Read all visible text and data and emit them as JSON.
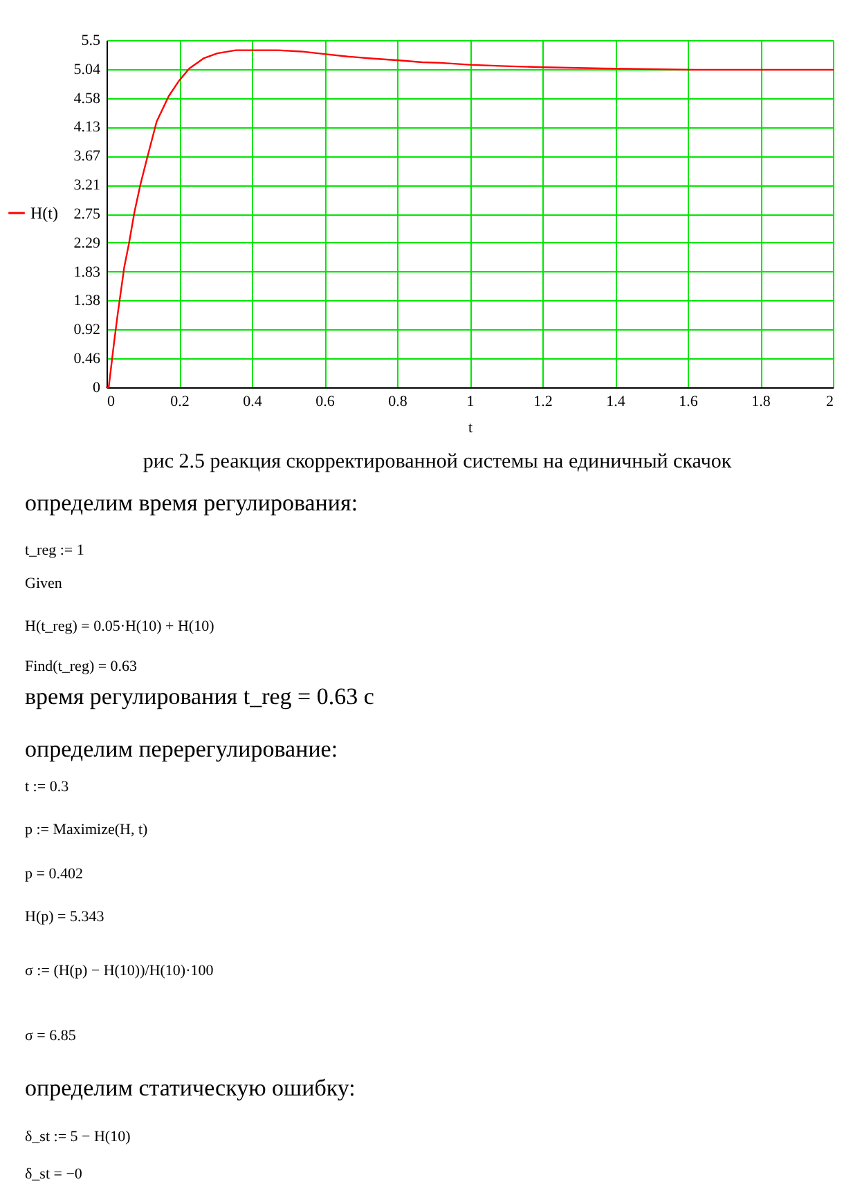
{
  "chart_data": {
    "type": "line",
    "title": "рис 2.5 реакция скорректированной системы на единичный скачок",
    "xlabel": "t",
    "x": [
      0,
      0.006,
      0.0205,
      0.031,
      0.0487,
      0.0615,
      0.077,
      0.0936,
      0.113,
      0.138,
      0.171,
      0.2,
      0.228,
      0.267,
      0.305,
      0.356,
      0.4,
      0.472,
      0.536,
      0.6,
      0.664,
      0.728,
      0.805,
      0.869,
      0.92,
      1.0,
      1.085,
      1.206,
      1.365,
      1.621,
      2.0
    ],
    "series": [
      {
        "name": "H(t)",
        "color": "#ff0000",
        "values": [
          0,
          0,
          0.7,
          1.17,
          1.9,
          2.27,
          2.78,
          3.22,
          3.66,
          4.21,
          4.61,
          4.86,
          5.05,
          5.21,
          5.29,
          5.34,
          5.34,
          5.34,
          5.32,
          5.28,
          5.24,
          5.21,
          5.18,
          5.15,
          5.14,
          5.11,
          5.09,
          5.07,
          5.05,
          5.03,
          5.03
        ]
      }
    ],
    "xlim": [
      0,
      2
    ],
    "ylim": [
      0,
      5.5
    ],
    "xticks": [
      0,
      0.2,
      0.4,
      0.6,
      0.8,
      1,
      1.2,
      1.4,
      1.6,
      1.8,
      2
    ],
    "yticks": [
      0,
      0.46,
      0.92,
      1.38,
      1.83,
      2.29,
      2.75,
      3.21,
      3.67,
      4.13,
      4.58,
      5.04,
      5.5
    ],
    "grid": true,
    "legend": "left",
    "annotations": [
      "определим время регулирования:",
      "t_reg := 1",
      "Given",
      "H(t_reg) = 0.05·H(10) + H(10)",
      "Find(t_reg) = 0.63",
      "время регулирования t_reg = 0.63 с",
      "определим перерегулирование:",
      "t := 0.3",
      "p := Maximize(H, t)",
      "p = 0.402",
      "H(p) = 5.343",
      "σ := (H(p) − H(10))/H(10)·100",
      "σ = 6.85",
      "определим статическую ошибку:",
      "δ_st := 5 − H(10)",
      "δ_st = −0"
    ]
  }
}
